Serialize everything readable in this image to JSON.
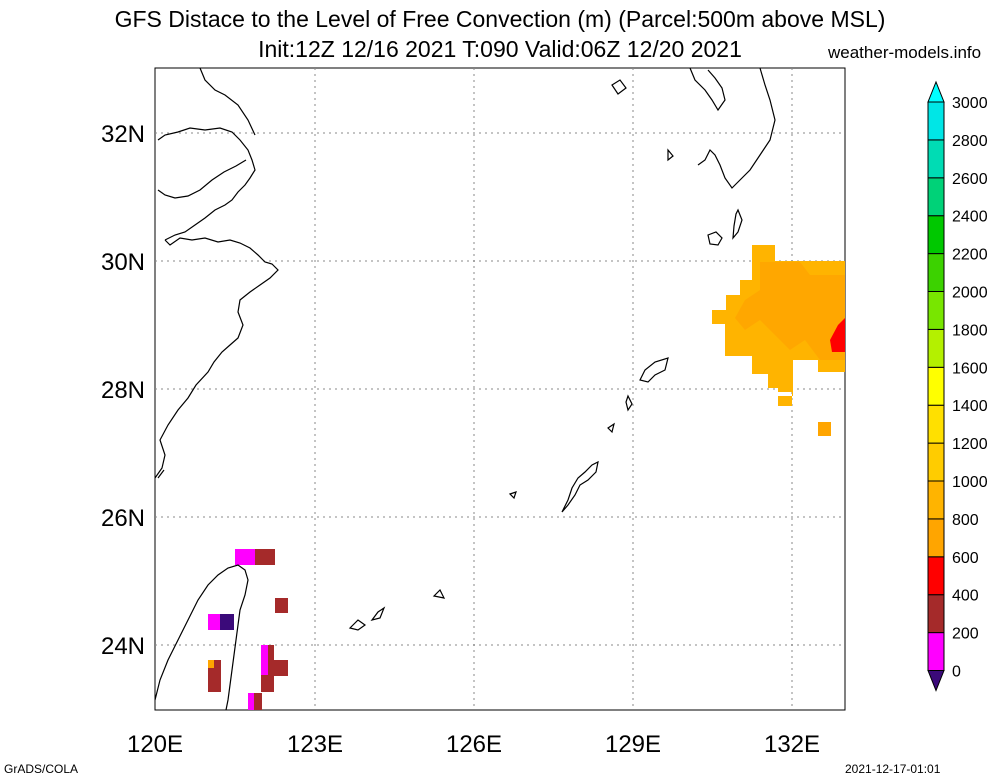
{
  "title_line1": "GFS Distace to the Level of Free Convection (m) (Parcel:500m above MSL)",
  "title_line2": "Init:12Z 12/16 2021 T:090 Valid:06Z 12/20 2021",
  "site": "weather-models.info",
  "footer_left": "GrADS/COLA",
  "footer_right": "2021-12-17-01:01",
  "map": {
    "lon_ticks": [
      "120E",
      "123E",
      "126E",
      "129E",
      "132E"
    ],
    "lat_ticks": [
      "32N",
      "30N",
      "28N",
      "26N",
      "24N"
    ],
    "lon_range": [
      120,
      133
    ],
    "lat_range": [
      23,
      33
    ]
  },
  "colorbar": {
    "labels": [
      "0",
      "200",
      "400",
      "600",
      "800",
      "1000",
      "1200",
      "1400",
      "1600",
      "1800",
      "2000",
      "2200",
      "2400",
      "2600",
      "2800",
      "3000"
    ],
    "colors": [
      "#3b0a7a",
      "#ff00ff",
      "#a52a2a",
      "#ff0000",
      "#ffa500",
      "#ffb400",
      "#ffcc00",
      "#ffe000",
      "#ffff00",
      "#b4f000",
      "#78e600",
      "#3cd200",
      "#00c800",
      "#00d278",
      "#00dcb4",
      "#00e6e6",
      "#00ffff"
    ]
  }
}
